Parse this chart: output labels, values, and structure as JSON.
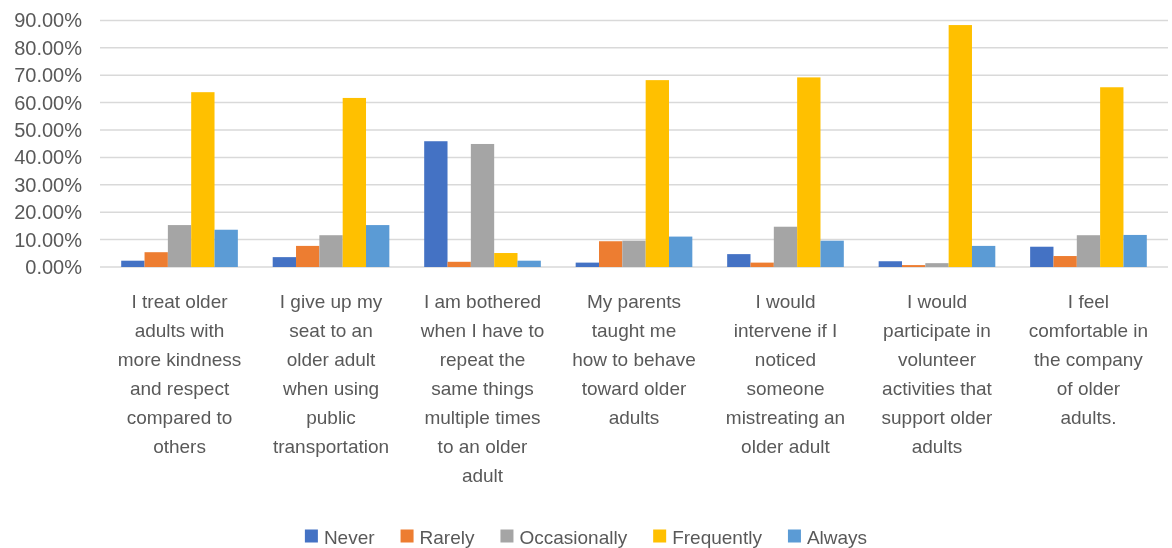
{
  "chart_data": {
    "type": "bar",
    "categories": [
      "I treat older adults with more kindness and respect compared to others",
      "I give up my seat to an older adult when using public transportation",
      "I am bothered when I have to repeat the same things multiple times to an older adult",
      "My parents taught me how to behave toward older adults",
      "I would intervene if I noticed someone mistreating an older adult",
      "I would participate in volunteer activities that support older adults",
      "I feel comfortable in the company of older adults."
    ],
    "series": [
      {
        "name": "Never",
        "color": "#4472c4",
        "values": [
          2.3,
          3.6,
          45.9,
          1.6,
          4.7,
          2.1,
          7.4
        ]
      },
      {
        "name": "Rarely",
        "color": "#ed7d31",
        "values": [
          5.4,
          7.7,
          1.9,
          9.4,
          1.6,
          0.7,
          4.0
        ]
      },
      {
        "name": "Occasionally",
        "color": "#a5a5a5",
        "values": [
          15.3,
          11.6,
          44.9,
          9.6,
          14.7,
          1.4,
          11.6
        ]
      },
      {
        "name": "Frequently",
        "color": "#ffc000",
        "values": [
          63.8,
          61.7,
          5.1,
          68.2,
          69.2,
          88.3,
          65.6
        ]
      },
      {
        "name": "Always",
        "color": "#5b9bd5",
        "values": [
          13.6,
          15.3,
          2.3,
          11.1,
          9.6,
          7.7,
          11.7
        ]
      }
    ],
    "ylim": [
      0,
      90
    ],
    "yticks": [
      {
        "value": 0,
        "label": "0.00%"
      },
      {
        "value": 10,
        "label": "10.00%"
      },
      {
        "value": 20,
        "label": "20.00%"
      },
      {
        "value": 30,
        "label": "30.00%"
      },
      {
        "value": 40,
        "label": "40.00%"
      },
      {
        "value": 50,
        "label": "50.00%"
      },
      {
        "value": 60,
        "label": "60.00%"
      },
      {
        "value": 70,
        "label": "70.00%"
      },
      {
        "value": 80,
        "label": "80.00%"
      },
      {
        "value": 90,
        "label": "90.00%"
      }
    ],
    "grid": "y",
    "legend": "bottom"
  }
}
